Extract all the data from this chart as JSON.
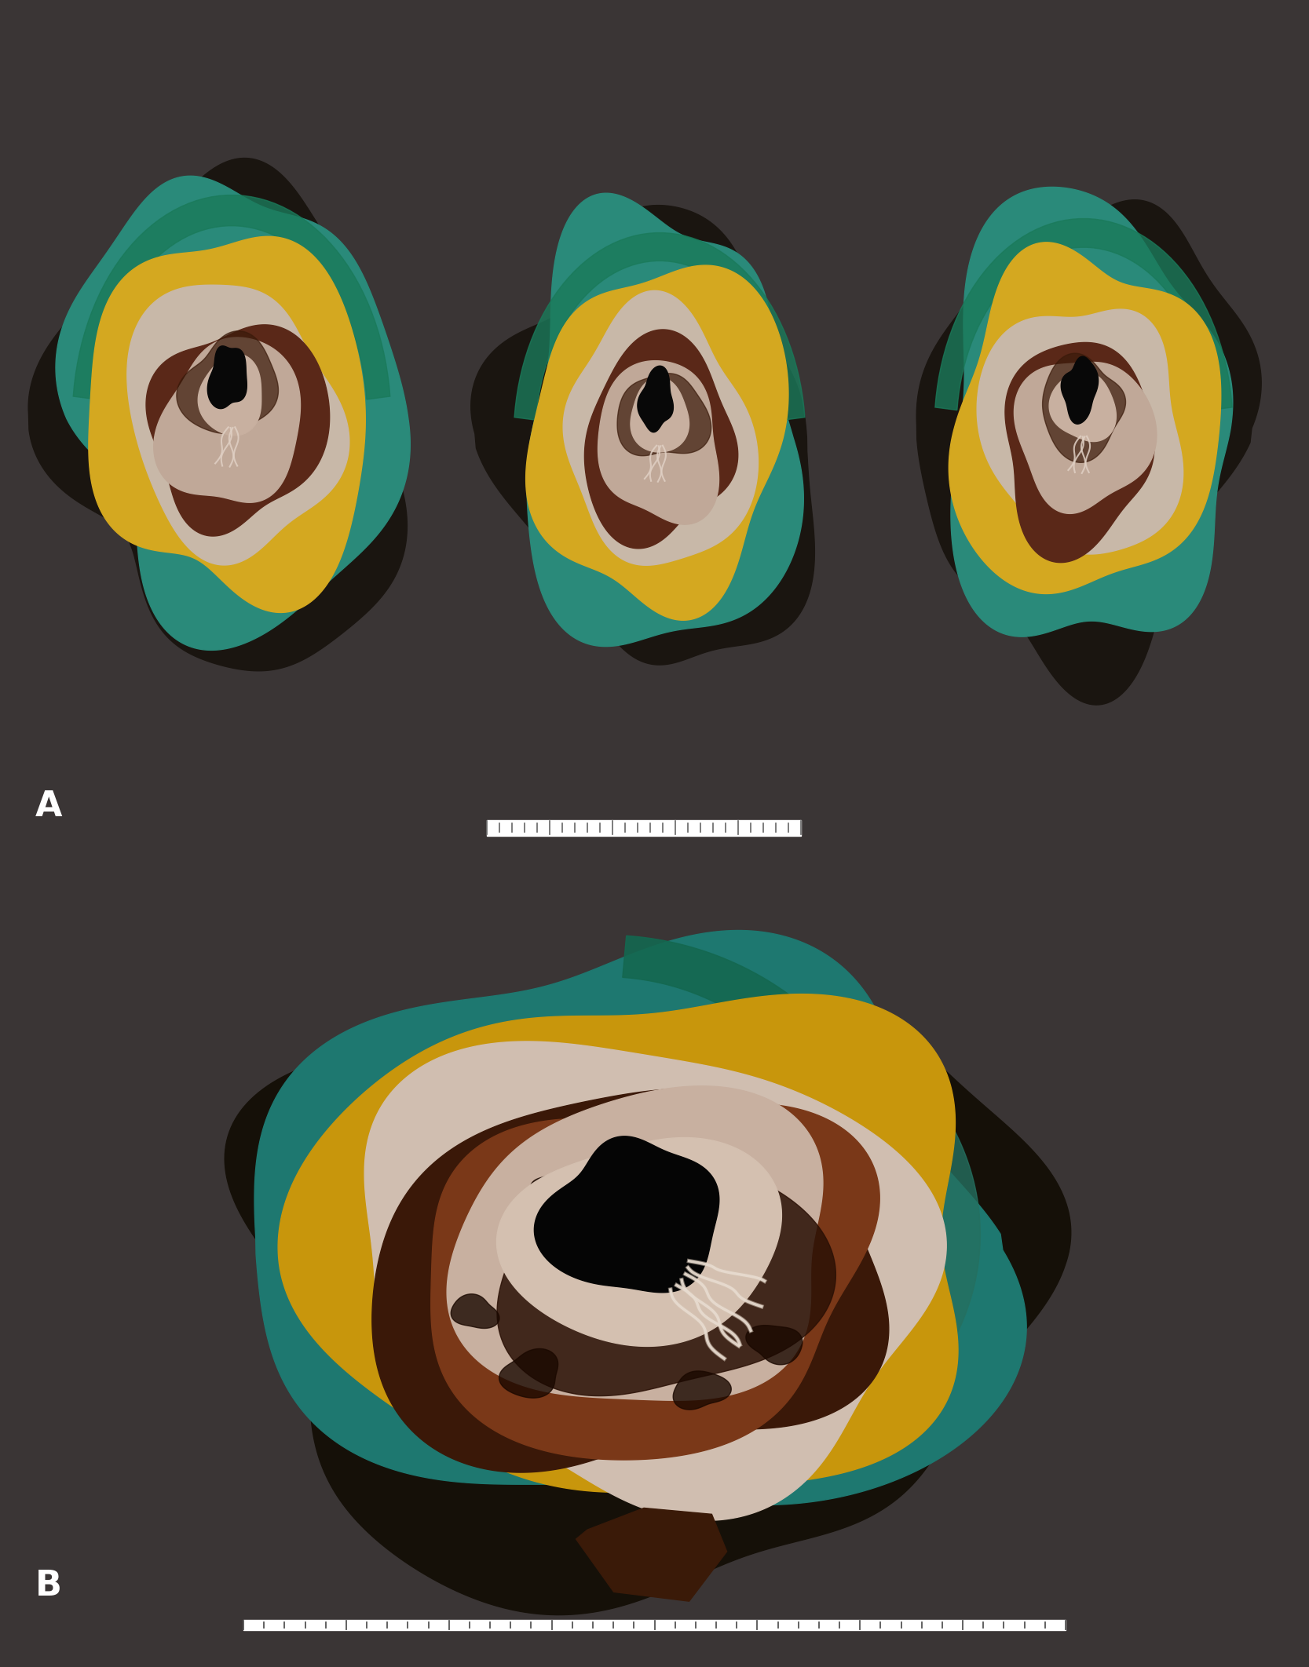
{
  "figure_label_A": "A",
  "figure_label_B": "B",
  "label_color": "#ffffff",
  "label_fontsize": 32,
  "label_fontweight": "bold",
  "background_color": "#3a3535",
  "figwidth": 16.67,
  "figheight": 21.24,
  "dpi": 100,
  "panel_split": 0.452,
  "ink_color": "#2a8a7a",
  "ink_color2": "#1a6a5a",
  "fat_color": "#c8960a",
  "fat_color2": "#d4a820",
  "musc_color": "#c0a090",
  "musc_color2": "#d0b8a8",
  "tumor_color": "#6a3020",
  "tumor_color2": "#8a4828",
  "inner_color": "#c8b0a0",
  "lumen_color": "#0a0a0a",
  "fold_color": "#e0d0c8",
  "dark_bg": "#2e2a2a"
}
